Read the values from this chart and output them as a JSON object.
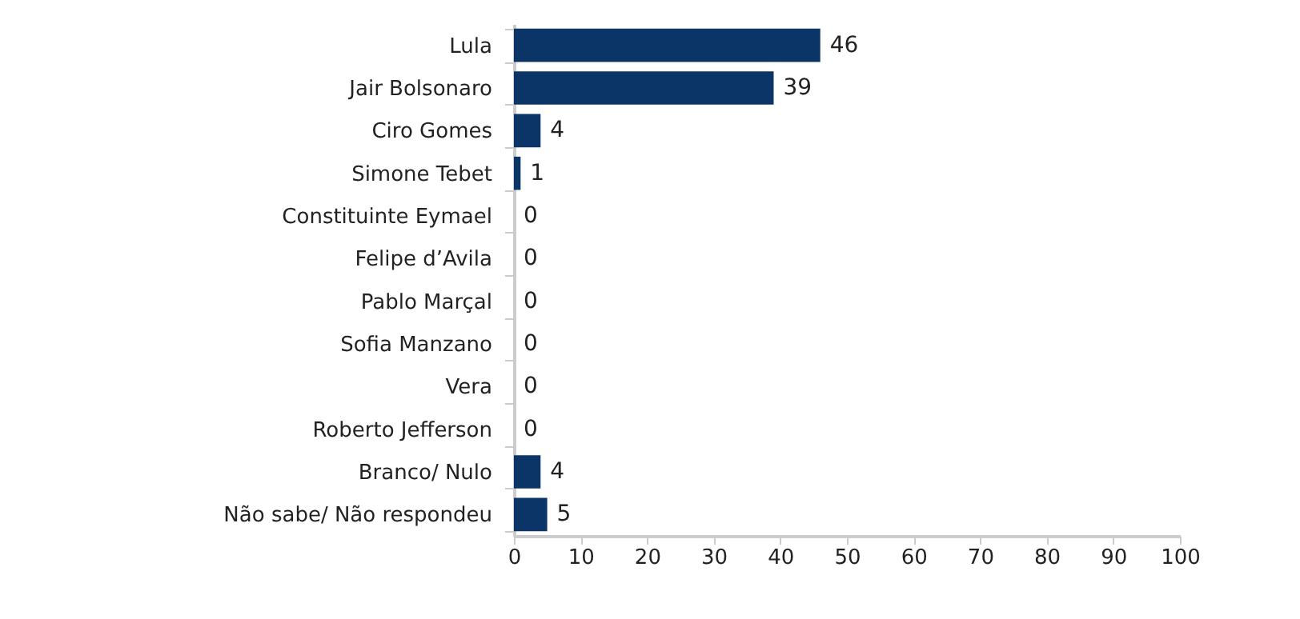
{
  "chart_data": {
    "type": "bar",
    "orientation": "horizontal",
    "categories": [
      "Lula",
      "Jair Bolsonaro",
      "Ciro Gomes",
      "Simone Tebet",
      "Constituinte Eymael",
      "Felipe d’Avila",
      "Pablo Marçal",
      "Sofia Manzano",
      "Vera",
      "Roberto Jefferson",
      "Branco/ Nulo",
      "Não sabe/ Não respondeu"
    ],
    "values": [
      46,
      39,
      4,
      1,
      0,
      0,
      0,
      0,
      0,
      0,
      4,
      5
    ],
    "color": "#0b3566",
    "xlim": [
      0,
      100
    ],
    "xticks": [
      0,
      10,
      20,
      30,
      40,
      50,
      60,
      70,
      80,
      90,
      100
    ],
    "data_labels": true
  }
}
